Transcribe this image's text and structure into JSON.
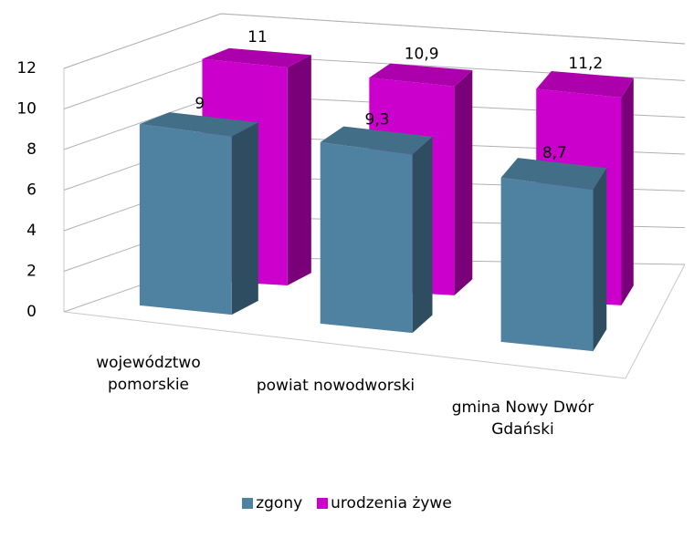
{
  "chart_data": {
    "type": "bar3d",
    "categories": [
      "województwo pomorskie",
      "powiat nowodworski",
      "gmina Nowy Dwór Gdański"
    ],
    "series": [
      {
        "name": "zgony",
        "color": "#4f81a0",
        "values": [
          9,
          9.3,
          8.7
        ],
        "value_labels": [
          "9",
          "9,3",
          "8,7"
        ]
      },
      {
        "name": "urodzenia żywe",
        "color": "#cc00cc",
        "values": [
          11,
          10.9,
          11.2
        ],
        "value_labels": [
          "11",
          "10,9",
          "11,2"
        ]
      }
    ],
    "ylim": [
      0,
      12
    ],
    "yticks": [
      0,
      2,
      4,
      6,
      8,
      10,
      12
    ],
    "grid": true,
    "legend": "bottom"
  }
}
